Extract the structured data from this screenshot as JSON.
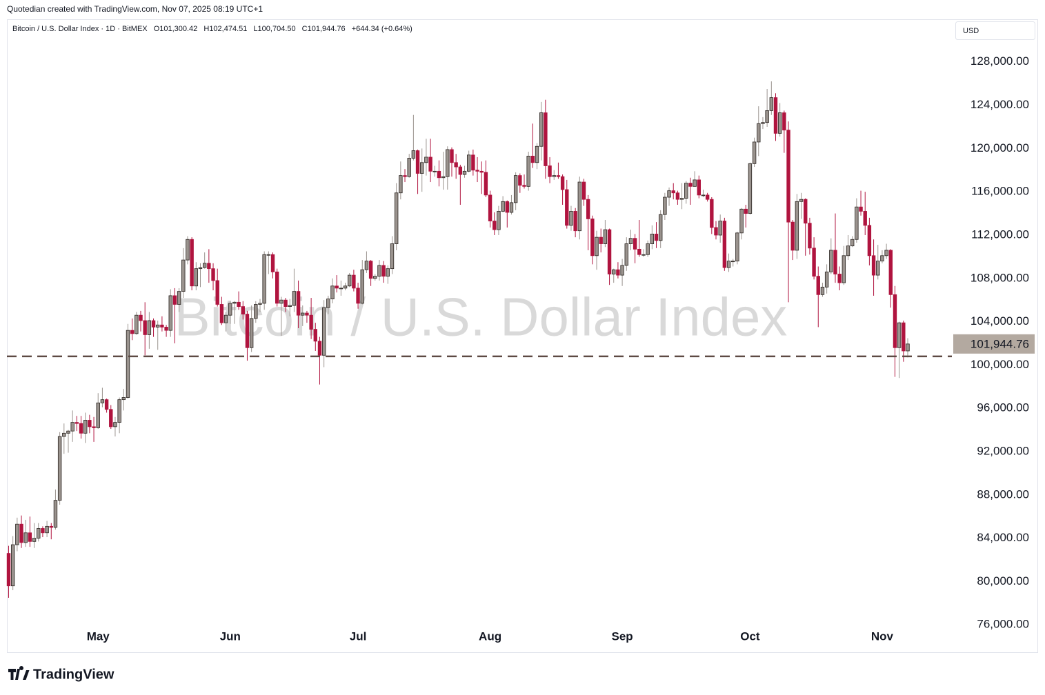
{
  "header": {
    "credit": "Quotedian created with TradingView.com, Nov 07, 2025 08:19 UTC+1",
    "currency": "USD",
    "logo": "TradingView"
  },
  "chart_data": {
    "type": "candlestick",
    "title": "Bitcoin / U.S. Dollar Index",
    "symbol_line": "Bitcoin / U.S. Dollar Index · 1D · BitMEX",
    "ohlc_text": [
      "O101,300.42",
      "H102,474.51",
      "L100,704.50",
      "C101,944.76",
      "+644.34 (+0.64%)"
    ],
    "up_color": "#9a938e",
    "down_color": "#b0143f",
    "outline_color": "#2a2420",
    "categories": [
      null,
      null,
      null,
      null,
      null,
      null,
      null,
      null,
      null,
      null,
      null,
      null,
      null,
      null,
      null,
      null,
      null,
      null,
      null,
      null,
      null,
      "May",
      null,
      null,
      null,
      null,
      null,
      null,
      null,
      null,
      null,
      null,
      null,
      null,
      null,
      null,
      null,
      null,
      null,
      null,
      null,
      null,
      null,
      null,
      null,
      null,
      null,
      null,
      null,
      null,
      null,
      null,
      "Jun",
      null,
      null,
      null,
      null,
      null,
      null,
      null,
      null,
      null,
      null,
      null,
      null,
      null,
      null,
      null,
      null,
      null,
      null,
      null,
      null,
      null,
      null,
      null,
      null,
      null,
      null,
      null,
      null,
      null,
      "Jul",
      null,
      null,
      null,
      null,
      null,
      null,
      null,
      null,
      null,
      null,
      null,
      null,
      null,
      null,
      null,
      null,
      null,
      null,
      null,
      null,
      null,
      null,
      null,
      null,
      null,
      null,
      null,
      null,
      null,
      null,
      "Aug",
      null,
      null,
      null,
      null,
      null,
      null,
      null,
      null,
      null,
      null,
      null,
      null,
      null,
      null,
      null,
      null,
      null,
      null,
      null,
      null,
      null,
      null,
      null,
      null,
      null,
      null,
      null,
      null,
      null,
      null,
      "Sep",
      null,
      null,
      null,
      null,
      null,
      null,
      null,
      null,
      null,
      null,
      null,
      null,
      null,
      null,
      null,
      null,
      null,
      null,
      null,
      null,
      null,
      null,
      null,
      null,
      null,
      null,
      null,
      null,
      null,
      "Oct",
      null,
      null,
      null,
      null,
      null,
      null,
      null,
      null,
      null,
      null,
      null,
      null,
      null,
      null,
      null,
      null,
      null,
      null,
      null,
      null,
      null,
      null,
      null,
      null,
      null,
      null,
      null,
      null,
      null,
      null,
      "Nov",
      null,
      null,
      null,
      null,
      null,
      null
    ],
    "open": [
      82600,
      79600,
      83400,
      85300,
      83600,
      84500,
      83700,
      84000,
      84900,
      84500,
      85100,
      85000,
      87500,
      93400,
      93700,
      93900,
      94700,
      94600,
      93700,
      94900,
      94300,
      94200,
      96500,
      96800,
      95900,
      94300,
      94700,
      96800,
      97000,
      103200,
      102900,
      104600,
      104100,
      102800,
      104100,
      103500,
      103700,
      103500,
      103200,
      106400,
      105600,
      106800,
      109700,
      111600,
      107300,
      108900,
      109000,
      109400,
      108900,
      107800,
      105600,
      103900,
      104600,
      105700,
      105800,
      105400,
      104700,
      101600,
      104300,
      105600,
      105700,
      110200,
      110200,
      108600,
      105700,
      106000,
      105400,
      105500,
      106800,
      104600,
      104800,
      104600,
      103300,
      102200,
      100900,
      105300,
      106100,
      107300,
      107100,
      107100,
      107300,
      108300,
      107100,
      105700,
      108800,
      109600,
      108000,
      108200,
      109200,
      108200,
      108900,
      111200,
      115900,
      117500,
      117400,
      119100,
      119800,
      117700,
      118700,
      119200,
      117900,
      117900,
      117300,
      117400,
      119900,
      118700,
      118300,
      117600,
      117900,
      119400,
      118000,
      117900,
      117800,
      115700,
      113300,
      112500,
      114200,
      115100,
      114100,
      115000,
      117500,
      116600,
      116500,
      119300,
      118700,
      120200,
      123300,
      118400,
      117400,
      117500,
      117400,
      116200,
      112900,
      114200,
      112400,
      116900,
      115300,
      113500,
      110100,
      111800,
      111200,
      112500,
      108400,
      108800,
      108300,
      109200,
      111200,
      111700,
      110700,
      110200,
      110200,
      111200,
      112100,
      111500,
      113900,
      115500,
      116100,
      115900,
      115300,
      115400,
      116800,
      116500,
      117100,
      115700,
      115700,
      115300,
      112700,
      112000,
      113300,
      109000,
      109600,
      109600,
      112200,
      114400,
      114000,
      118600,
      120600,
      122300,
      122400,
      123500,
      124700,
      121400,
      123300,
      121700,
      113200,
      110600,
      115100,
      115300,
      113100,
      110800,
      108200,
      106500,
      107200,
      108600,
      110600,
      108400,
      107600,
      110100,
      111000,
      111600,
      114600,
      114200,
      112900,
      110100,
      108300,
      109600,
      110100,
      110600,
      106500,
      101600,
      103900,
      101300.42
    ],
    "high": [
      83300,
      84200,
      85900,
      86100,
      85700,
      86000,
      85400,
      85400,
      85100,
      85600,
      85400,
      88500,
      93800,
      94600,
      94000,
      95800,
      95300,
      95300,
      95600,
      95400,
      95200,
      97400,
      97900,
      96900,
      96300,
      95200,
      97000,
      97800,
      103800,
      104300,
      104900,
      105000,
      105800,
      104900,
      104300,
      104100,
      104500,
      103700,
      107000,
      107100,
      107100,
      110800,
      111900,
      111800,
      109500,
      109400,
      110400,
      110700,
      109400,
      108900,
      106300,
      104900,
      105900,
      105900,
      106800,
      105900,
      105000,
      105500,
      105900,
      106100,
      110500,
      110500,
      110400,
      108900,
      106300,
      106200,
      106100,
      108900,
      107800,
      105500,
      105000,
      106200,
      103900,
      102600,
      106000,
      106400,
      108000,
      108300,
      107800,
      107600,
      108500,
      108800,
      107600,
      109700,
      110500,
      109700,
      108400,
      109700,
      109600,
      109200,
      111900,
      116800,
      118800,
      118100,
      119500,
      123100,
      119900,
      120000,
      120900,
      120900,
      118400,
      118900,
      119700,
      120200,
      120100,
      119500,
      118500,
      118400,
      119800,
      119900,
      119200,
      118800,
      118900,
      116100,
      114100,
      114700,
      115600,
      115200,
      115700,
      117800,
      117700,
      117600,
      119700,
      122300,
      120500,
      124300,
      124500,
      119200,
      118000,
      118700,
      117600,
      117100,
      114700,
      114500,
      117400,
      117200,
      115700,
      113800,
      112400,
      112600,
      113400,
      112600,
      108900,
      109500,
      109800,
      111800,
      112500,
      112100,
      113400,
      110700,
      111500,
      112900,
      113200,
      114300,
      115900,
      116400,
      116800,
      116100,
      116800,
      117000,
      117300,
      117900,
      117500,
      116200,
      115900,
      115500,
      113300,
      113900,
      113600,
      110300,
      109800,
      112300,
      114500,
      114800,
      118700,
      121000,
      123900,
      122900,
      125500,
      126200,
      125100,
      124200,
      123500,
      122500,
      113400,
      115800,
      115900,
      115400,
      113600,
      111800,
      109100,
      107600,
      109300,
      111700,
      114000,
      109100,
      111000,
      112000,
      111900,
      115400,
      116100,
      116000,
      113600,
      111600,
      111100,
      110600,
      111200,
      110700,
      107300,
      104000,
      104100,
      102474.51
    ],
    "low": [
      78500,
      79200,
      82800,
      83100,
      83200,
      83200,
      83100,
      83700,
      84100,
      84100,
      83900,
      84800,
      87100,
      91800,
      91900,
      92900,
      93900,
      93200,
      92800,
      93700,
      92900,
      94100,
      96100,
      95600,
      94100,
      93400,
      93700,
      95800,
      96900,
      102300,
      102800,
      103100,
      100900,
      101500,
      102600,
      101400,
      103100,
      102600,
      102600,
      102000,
      104900,
      106200,
      109300,
      106900,
      106900,
      107200,
      108900,
      107600,
      106900,
      105400,
      103700,
      103100,
      103800,
      103800,
      105100,
      104200,
      100400,
      101200,
      103900,
      104900,
      105100,
      108400,
      108000,
      105400,
      102700,
      104900,
      104500,
      104900,
      103400,
      103600,
      103900,
      102400,
      101300,
      98200,
      99800,
      104700,
      105700,
      106700,
      106400,
      106900,
      107200,
      106800,
      105200,
      105600,
      108500,
      107300,
      107800,
      107800,
      107600,
      107500,
      108400,
      110600,
      115300,
      116900,
      117300,
      118900,
      115800,
      116000,
      117500,
      116900,
      117400,
      116500,
      116200,
      116200,
      117400,
      117200,
      114800,
      117300,
      117800,
      117500,
      116900,
      115800,
      115500,
      112700,
      112000,
      112000,
      114100,
      112700,
      113900,
      114300,
      115900,
      116300,
      116100,
      118200,
      118100,
      118900,
      117200,
      116800,
      117100,
      117200,
      114800,
      112600,
      112400,
      111800,
      111600,
      114700,
      110600,
      109300,
      108800,
      110400,
      110900,
      107400,
      107600,
      108000,
      107300,
      108700,
      110600,
      109400,
      110000,
      110000,
      110000,
      110700,
      110800,
      110800,
      113400,
      114700,
      115300,
      114800,
      114400,
      114900,
      114800,
      116500,
      115400,
      115500,
      115100,
      112100,
      111600,
      111300,
      108700,
      108600,
      109100,
      109300,
      111600,
      112700,
      113900,
      118300,
      119300,
      121800,
      122000,
      123100,
      120700,
      121100,
      119600,
      105800,
      109700,
      109800,
      113500,
      110100,
      110200,
      107900,
      103500,
      106300,
      106600,
      108400,
      107600,
      106900,
      107400,
      109700,
      110900,
      111300,
      113800,
      112000,
      109200,
      106400,
      107900,
      109400,
      109800,
      105300,
      98900,
      98800,
      100300,
      100704.5
    ],
    "close": [
      79600,
      83400,
      85300,
      83600,
      84500,
      83700,
      84000,
      84900,
      84500,
      85100,
      85000,
      87500,
      93400,
      93700,
      93900,
      94700,
      94600,
      93700,
      94900,
      94300,
      94200,
      96500,
      96800,
      95900,
      94300,
      94700,
      96800,
      97000,
      103200,
      102900,
      104600,
      104100,
      102800,
      104100,
      103500,
      103700,
      103500,
      103200,
      106400,
      105600,
      106800,
      109700,
      111600,
      107300,
      108900,
      109000,
      109400,
      108900,
      107800,
      105600,
      103900,
      104600,
      105700,
      105800,
      105400,
      104700,
      101600,
      104300,
      105600,
      105700,
      110200,
      110200,
      108600,
      105700,
      106000,
      105400,
      105500,
      106800,
      104600,
      104800,
      104600,
      103300,
      102200,
      100900,
      105300,
      106100,
      107300,
      107100,
      107100,
      107300,
      108300,
      107100,
      105700,
      108800,
      109600,
      108000,
      108200,
      109200,
      108200,
      108900,
      111200,
      115900,
      117500,
      117400,
      119100,
      119800,
      117700,
      118700,
      119200,
      117900,
      117900,
      117300,
      117400,
      119900,
      118700,
      118300,
      117600,
      117900,
      119400,
      118000,
      117900,
      117800,
      115700,
      113300,
      112500,
      114200,
      115100,
      114100,
      115000,
      117500,
      116600,
      116500,
      119300,
      118700,
      120200,
      123300,
      118400,
      117400,
      117500,
      117400,
      116200,
      112900,
      114200,
      112400,
      116900,
      115300,
      113500,
      110100,
      111800,
      111200,
      112500,
      108400,
      108800,
      108300,
      109200,
      111200,
      111700,
      110700,
      110200,
      110200,
      111200,
      112100,
      111500,
      113900,
      115500,
      116100,
      115900,
      115300,
      115400,
      116800,
      116500,
      117100,
      115700,
      115700,
      115300,
      112700,
      112000,
      113300,
      109000,
      109600,
      109600,
      112200,
      114400,
      114000,
      118600,
      120600,
      122300,
      122400,
      123500,
      124700,
      121400,
      123300,
      121700,
      113200,
      110600,
      115100,
      115300,
      113100,
      110800,
      108200,
      106500,
      107200,
      108600,
      110600,
      108400,
      107600,
      110100,
      111000,
      111600,
      114600,
      114200,
      112900,
      110100,
      108300,
      109600,
      110100,
      110600,
      106500,
      101600,
      103900,
      101300.42,
      101944.76
    ],
    "ylim": [
      73467,
      131933
    ],
    "yticks": [
      {
        "value": 76000,
        "label": "76,000.00"
      },
      {
        "value": 80000,
        "label": "80,000.00"
      },
      {
        "value": 84000,
        "label": "84,000.00"
      },
      {
        "value": 88000,
        "label": "88,000.00"
      },
      {
        "value": 92000,
        "label": "92,000.00"
      },
      {
        "value": 96000,
        "label": "96,000.00"
      },
      {
        "value": 100000,
        "label": "100,000.00"
      },
      {
        "value": 104000,
        "label": "104,000.00"
      },
      {
        "value": 108000,
        "label": "108,000.00"
      },
      {
        "value": 112000,
        "label": "112,000.00"
      },
      {
        "value": 116000,
        "label": "116,000.00"
      },
      {
        "value": 120000,
        "label": "120,000.00"
      },
      {
        "value": 124000,
        "label": "124,000.00"
      },
      {
        "value": 128000,
        "label": "128,000.00"
      }
    ],
    "last_price": {
      "value": 101944.76,
      "label": "101,944.76"
    },
    "horizontal_line": 100800,
    "grid": false
  }
}
